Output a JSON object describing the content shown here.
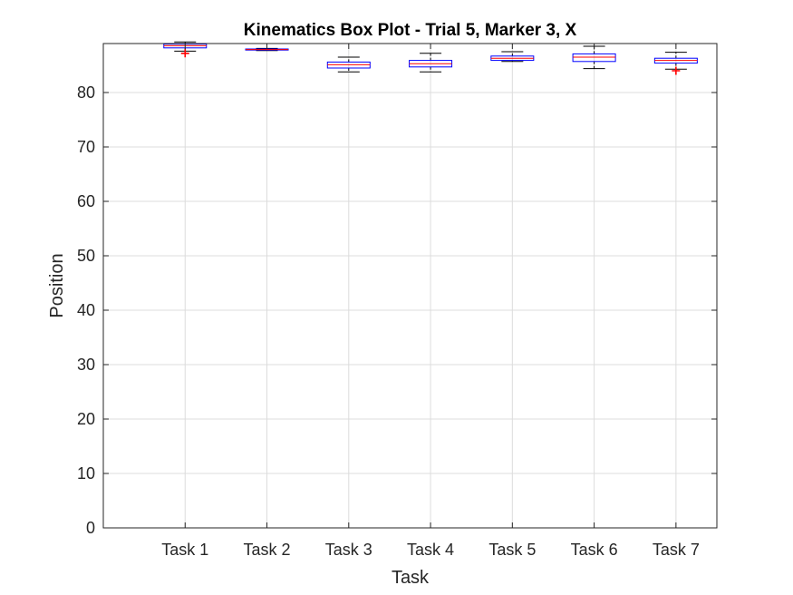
{
  "chart_data": {
    "type": "box",
    "title": "Kinematics Box Plot - Trial 5, Marker 3, X",
    "xlabel": "Task",
    "ylabel": "Position",
    "ylim": [
      0,
      89
    ],
    "yticks": [
      0,
      10,
      20,
      30,
      40,
      50,
      60,
      70,
      80
    ],
    "grid": true,
    "colors": {
      "box": "#0000ff",
      "median": "#ff0000",
      "whisker": "#000000",
      "outlier": "#ff0000"
    },
    "categories": [
      "Task 1",
      "Task 2",
      "Task 3",
      "Task 4",
      "Task 5",
      "Task 6",
      "Task 7"
    ],
    "boxes": [
      {
        "label": "Task 1",
        "whisker_low": 87.6,
        "q1": 88.2,
        "median": 88.6,
        "q3": 88.9,
        "whisker_high": 89.3,
        "outliers": [
          87.2
        ]
      },
      {
        "label": "Task 2",
        "whisker_low": 87.7,
        "q1": 87.8,
        "median": 87.9,
        "q3": 88.0,
        "whisker_high": 88.1,
        "outliers": []
      },
      {
        "label": "Task 3",
        "whisker_low": 83.8,
        "q1": 84.5,
        "median": 85.1,
        "q3": 85.6,
        "whisker_high": 86.5,
        "outliers": []
      },
      {
        "label": "Task 4",
        "whisker_low": 83.8,
        "q1": 84.7,
        "median": 85.3,
        "q3": 85.9,
        "whisker_high": 87.2,
        "outliers": []
      },
      {
        "label": "Task 5",
        "whisker_low": 85.7,
        "q1": 85.9,
        "median": 86.3,
        "q3": 86.7,
        "whisker_high": 87.5,
        "outliers": []
      },
      {
        "label": "Task 6",
        "whisker_low": 84.4,
        "q1": 85.7,
        "median": 86.5,
        "q3": 87.1,
        "whisker_high": 88.5,
        "outliers": []
      },
      {
        "label": "Task 7",
        "whisker_low": 84.3,
        "q1": 85.4,
        "median": 85.9,
        "q3": 86.3,
        "whisker_high": 87.4,
        "outliers": [
          84.0
        ]
      }
    ]
  }
}
